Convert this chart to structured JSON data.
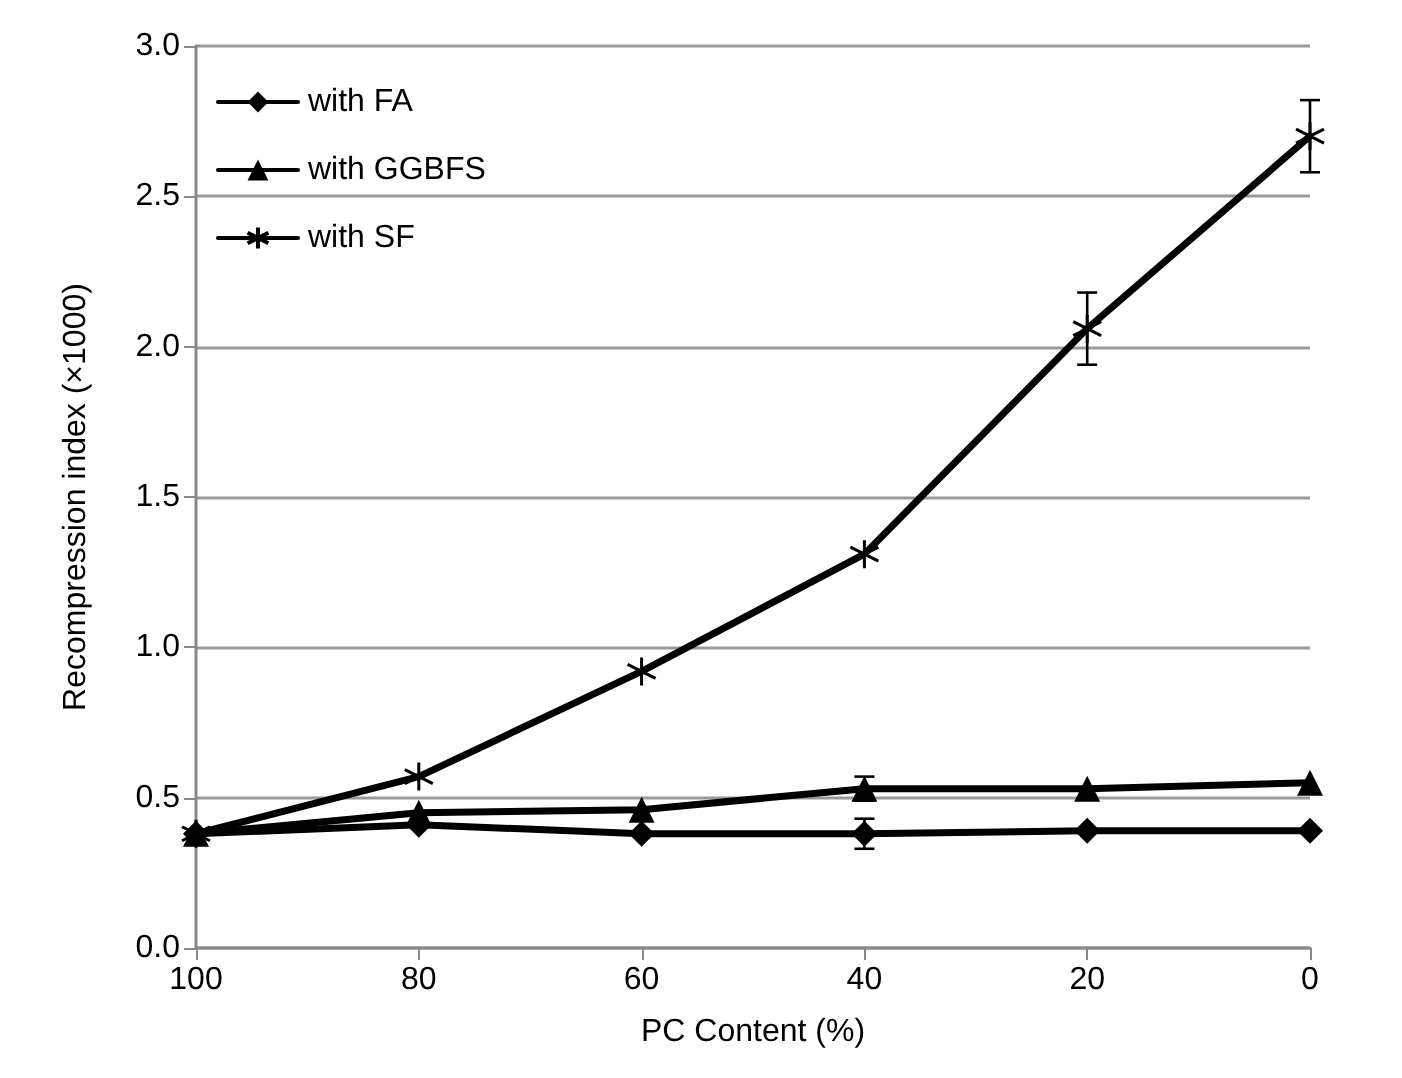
{
  "chart_data": {
    "type": "line",
    "xlabel": "PC Content (%)",
    "ylabel": "Recompression index (×1000)",
    "x": [
      100,
      80,
      60,
      40,
      20,
      0
    ],
    "xlim": [
      100,
      0
    ],
    "xticks": [
      100,
      80,
      60,
      40,
      20,
      0
    ],
    "ylim": [
      0,
      3
    ],
    "yticks": [
      {
        "value": 0,
        "label": "0.0"
      },
      0.5,
      {
        "value": 1,
        "label": "1.0"
      },
      1.5,
      {
        "value": 2,
        "label": "2.0"
      },
      2.5,
      {
        "value": 3,
        "label": "3.0"
      }
    ],
    "grid": "y",
    "legend": "top left",
    "series": [
      {
        "name": "with FA",
        "color": "#000000",
        "marker": "diamond",
        "values": [
          0.38,
          0.41,
          0.38,
          0.38,
          0.39,
          0.39
        ],
        "errors": [
          null,
          null,
          null,
          0.05,
          null,
          null
        ]
      },
      {
        "name": "with GGBFS",
        "color": "#000000",
        "marker": "triangle",
        "values": [
          0.38,
          0.45,
          0.46,
          0.53,
          0.53,
          0.55
        ],
        "errors": [
          null,
          null,
          null,
          0.04,
          null,
          null
        ]
      },
      {
        "name": "with SF",
        "color": "#000000",
        "marker": "cross",
        "values": [
          0.38,
          0.57,
          0.92,
          1.31,
          2.06,
          2.7
        ],
        "errors": [
          null,
          null,
          null,
          null,
          0.12,
          0.12
        ]
      }
    ]
  }
}
